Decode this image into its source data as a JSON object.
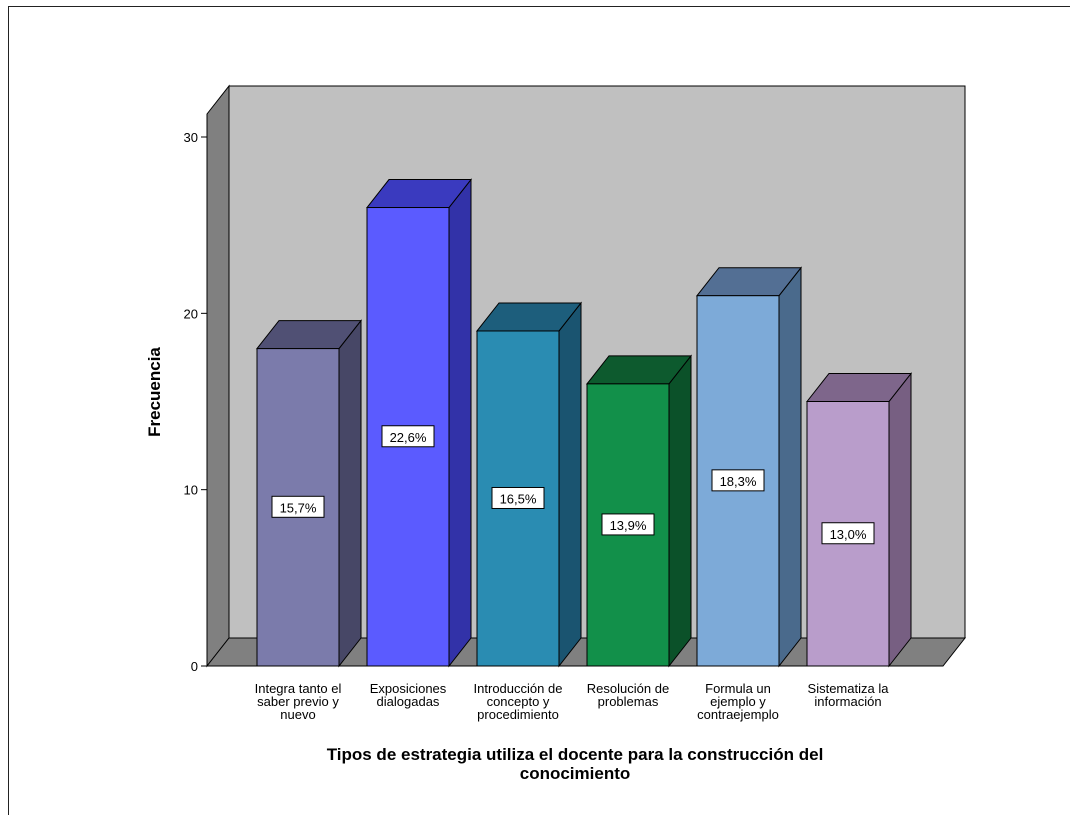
{
  "chart_data": {
    "type": "bar",
    "title": "",
    "xlabel": "Tipos de estrategia utiliza el docente para la construcción del conocimiento",
    "ylabel": "Frecuencia",
    "ylim": [
      0,
      30
    ],
    "yticks": [
      0,
      10,
      20,
      30
    ],
    "grid": false,
    "style": "3d",
    "categories": [
      "Integra tanto el saber previo y nuevo",
      "Exposiciones dialogadas",
      "Introducción de concepto y procedimiento",
      "Resolución de problemas",
      "Formula un ejemplo y contraejemplo",
      "Sistematiza la información"
    ],
    "category_lines": [
      [
        "Integra tanto el",
        "saber previo y",
        "nuevo"
      ],
      [
        "Exposiciones",
        "dialogadas"
      ],
      [
        "Introducción de",
        "concepto y",
        "procedimiento"
      ],
      [
        "Resolución de",
        "problemas"
      ],
      [
        "Formula un",
        "ejemplo y",
        "contraejemplo"
      ],
      [
        "Sistematiza la",
        "información"
      ]
    ],
    "values": [
      18,
      26,
      19,
      16,
      21,
      15
    ],
    "data_labels": [
      "15,7%",
      "22,6%",
      "16,5%",
      "13,9%",
      "18,3%",
      "13,0%"
    ],
    "colors": [
      {
        "front": "#7b7bab",
        "side": "#474766",
        "top": "#505074"
      },
      {
        "front": "#5b5bff",
        "side": "#3232a8",
        "top": "#3a3abf"
      },
      {
        "front": "#2a8cb2",
        "side": "#1a5470",
        "top": "#1d5e7c"
      },
      {
        "front": "#12904a",
        "side": "#0b5129",
        "top": "#0d5a2e"
      },
      {
        "front": "#7daad8",
        "side": "#4a6a8c",
        "top": "#536f94"
      },
      {
        "front": "#b99dcb",
        "side": "#775f82",
        "top": "#7e668b"
      }
    ],
    "wall_color": "#c0c0c0",
    "floor_color": "#808080"
  }
}
